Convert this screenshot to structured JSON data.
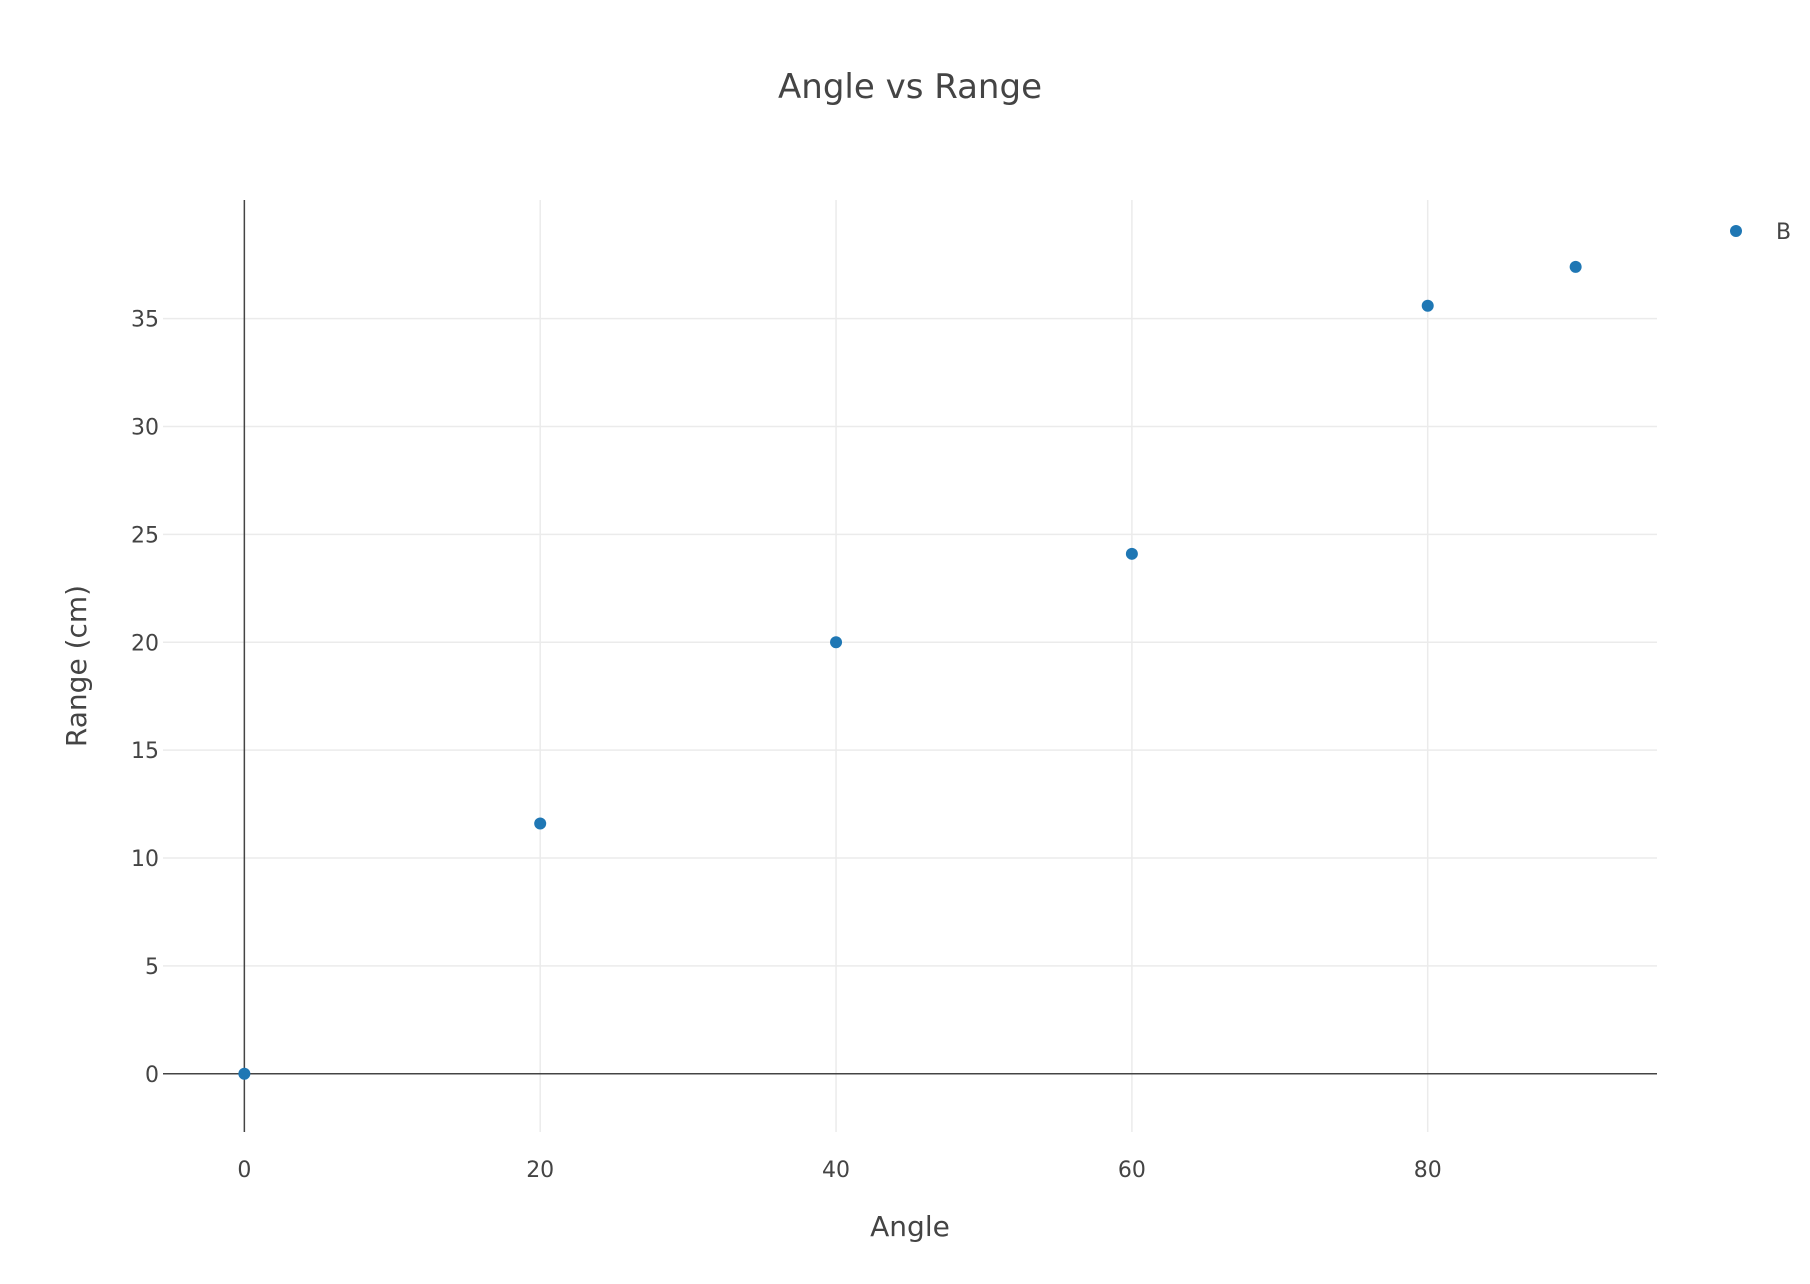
{
  "chart_data": {
    "type": "scatter",
    "title": "Angle vs Range",
    "xlabel": "Angle",
    "ylabel": "Range (cm)",
    "xlim": [
      -5.5,
      95.5
    ],
    "ylim": [
      -2.7,
      40.5
    ],
    "xticks": [
      0,
      20,
      40,
      60,
      80
    ],
    "yticks": [
      0,
      5,
      10,
      15,
      20,
      25,
      30,
      35
    ],
    "grid": true,
    "legend_position": "top-right",
    "series": [
      {
        "name": "B",
        "color": "#1f77b4",
        "x": [
          0,
          20,
          40,
          60,
          80,
          90
        ],
        "y": [
          0,
          11.6,
          20.0,
          24.1,
          35.6,
          37.4
        ]
      }
    ]
  }
}
